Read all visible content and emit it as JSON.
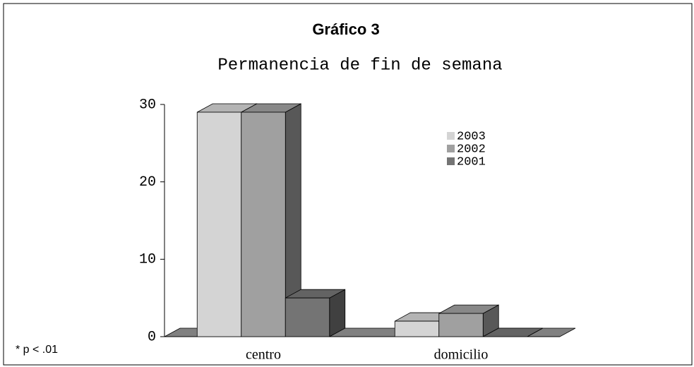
{
  "chart_data": {
    "type": "bar3d",
    "title": "Gráfico 3",
    "subtitle": "Permanencia de fin de semana",
    "note": "* p < .01",
    "categories": [
      "centro",
      "domicilio"
    ],
    "series": [
      {
        "name": "2003",
        "color": "#d4d4d4",
        "values": [
          29,
          2
        ]
      },
      {
        "name": "2002",
        "color": "#a0a0a0",
        "values": [
          29,
          3
        ]
      },
      {
        "name": "2001",
        "color": "#747474",
        "values": [
          5,
          0
        ]
      }
    ],
    "ylim": [
      0,
      30
    ],
    "yticks": [
      0,
      10,
      20,
      30
    ],
    "legend": "upper right"
  }
}
